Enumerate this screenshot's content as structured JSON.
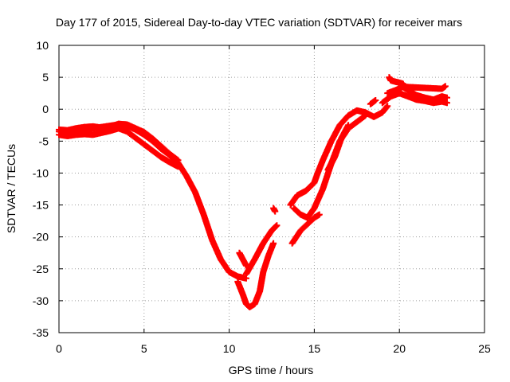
{
  "chart_data": {
    "type": "scatter",
    "title": "Day 177 of 2015, Sidereal Day-to-day VTEC variation (SDTVAR) for receiver mars",
    "xlabel": "GPS time / hours",
    "ylabel": "SDTVAR / TECUs",
    "xlim": [
      0,
      25
    ],
    "ylim": [
      -35,
      10
    ],
    "xticks": [
      0,
      5,
      10,
      15,
      20,
      25
    ],
    "yticks": [
      -35,
      -30,
      -25,
      -20,
      -15,
      -10,
      -5,
      0,
      5,
      10
    ],
    "grid": true,
    "legend": "none",
    "marker": "plus",
    "color": "#ff0000",
    "series": [
      {
        "x": [
          0.0,
          0.5,
          1.0,
          1.5,
          2.0,
          2.5,
          3.0,
          3.5,
          4.0,
          4.5,
          5.0,
          5.5,
          6.0,
          6.5,
          7.0,
          7.5,
          8.0,
          8.5,
          9.0,
          9.5,
          10.0,
          10.5,
          11.0
        ],
        "y": [
          -3.5,
          -3.7,
          -3.5,
          -3.2,
          -3.0,
          -2.8,
          -2.6,
          -2.4,
          -2.6,
          -3.2,
          -4.0,
          -5.0,
          -6.2,
          -7.2,
          -8.4,
          -10.5,
          -13.0,
          -16.5,
          -20.5,
          -23.5,
          -25.5,
          -26.2,
          -26.5
        ]
      },
      {
        "x": [
          0.0,
          0.5,
          1.0,
          1.5,
          2.0,
          2.5,
          3.0,
          3.5,
          4.0,
          4.5,
          5.0,
          5.5,
          6.0,
          6.5,
          7.0
        ],
        "y": [
          -4.0,
          -4.2,
          -4.0,
          -3.9,
          -4.0,
          -3.7,
          -3.4,
          -3.0,
          -3.5,
          -4.5,
          -5.5,
          -6.5,
          -7.5,
          -8.3,
          -9.0
        ]
      },
      {
        "x": [
          0.0,
          0.5,
          1.0,
          1.5,
          2.0,
          2.5,
          3.0,
          3.5,
          4.0,
          4.5,
          5.0,
          5.5,
          6.0,
          6.5,
          7.0
        ],
        "y": [
          -3.2,
          -3.3,
          -3.0,
          -2.8,
          -2.7,
          -2.9,
          -2.8,
          -2.3,
          -2.4,
          -3.0,
          -3.6,
          -4.6,
          -5.8,
          -7.0,
          -8.0
        ]
      },
      {
        "x": [
          10.5,
          10.8,
          11.0,
          11.2,
          11.5,
          11.8,
          12.0,
          12.3,
          12.6
        ],
        "y": [
          -27.0,
          -29.0,
          -30.5,
          -31.0,
          -30.5,
          -28.5,
          -25.5,
          -23.0,
          -21.0
        ]
      },
      {
        "x": [
          11.0,
          11.5,
          12.0,
          12.5,
          12.8
        ],
        "y": [
          -25.8,
          -23.5,
          -21.0,
          -19.0,
          -18.2
        ]
      },
      {
        "x": [
          10.6,
          10.8,
          11.0
        ],
        "y": [
          -22.5,
          -23.5,
          -24.5
        ]
      },
      {
        "x": [
          12.6,
          12.7
        ],
        "y": [
          -15.5,
          -16.0
        ]
      },
      {
        "x": [
          13.6,
          14.0,
          14.5,
          15.0,
          15.2,
          15.5,
          16.0,
          16.5,
          17.0,
          17.5,
          18.0,
          18.5,
          19.0,
          19.3
        ],
        "y": [
          -15.0,
          -13.5,
          -12.8,
          -11.5,
          -10.0,
          -8.0,
          -5.0,
          -2.5,
          -1.0,
          -0.2,
          -0.5,
          -1.2,
          -0.5,
          0.5
        ]
      },
      {
        "x": [
          13.8,
          14.2,
          14.6,
          15.0,
          15.5,
          16.0,
          16.5,
          17.0,
          17.5,
          18.0
        ],
        "y": [
          -15.5,
          -16.5,
          -17.0,
          -15.5,
          -12.5,
          -8.5,
          -5.0,
          -3.0,
          -2.0,
          -1.0
        ]
      },
      {
        "x": [
          13.7,
          14.2,
          14.6,
          15.0,
          15.3
        ],
        "y": [
          -21.0,
          -19.0,
          -18.0,
          -17.0,
          -16.5
        ]
      },
      {
        "x": [
          15.8,
          16.2,
          16.6,
          17.0
        ],
        "y": [
          -9.5,
          -7.5,
          -4.5,
          -2.5
        ]
      },
      {
        "x": [
          18.3,
          18.6
        ],
        "y": [
          0.8,
          1.4
        ]
      },
      {
        "x": [
          19.0,
          19.5,
          20.0,
          20.5,
          21.0,
          21.5,
          22.0,
          22.5,
          22.8
        ],
        "y": [
          1.0,
          2.0,
          2.5,
          2.0,
          1.5,
          1.3,
          1.0,
          1.2,
          1.0
        ]
      },
      {
        "x": [
          19.3,
          19.8,
          20.2,
          20.6,
          21.0,
          21.5,
          22.0,
          22.5,
          22.8
        ],
        "y": [
          2.5,
          3.0,
          3.5,
          2.8,
          2.2,
          1.8,
          1.5,
          2.0,
          1.8
        ]
      },
      {
        "x": [
          19.4,
          19.5,
          20.2,
          20.3,
          22.5,
          22.7
        ],
        "y": [
          5.0,
          4.5,
          4.0,
          3.5,
          3.2,
          3.6
        ]
      }
    ]
  }
}
